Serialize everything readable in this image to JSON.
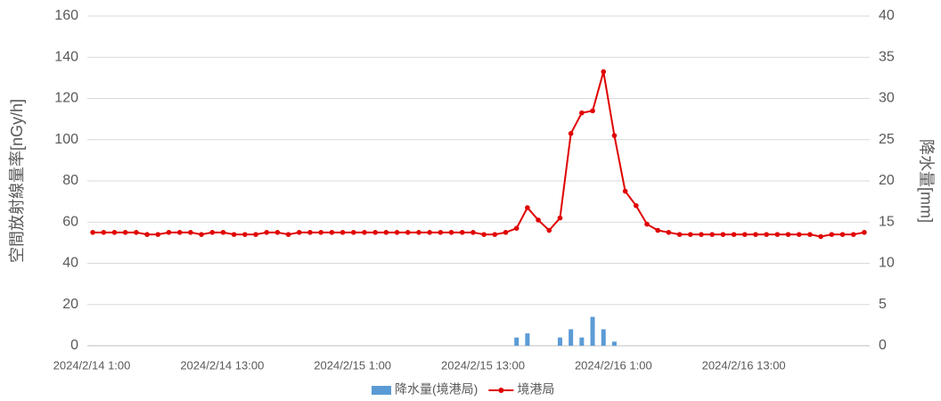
{
  "chart_data": {
    "type": "bar_line",
    "y_label": "空間放射線量率[nGy/h]",
    "y2_label": "降水量[mm]",
    "categories": [
      "2024/2/14 1:00",
      null,
      null,
      null,
      null,
      null,
      null,
      null,
      null,
      null,
      null,
      null,
      "2024/2/14 13:00",
      null,
      null,
      null,
      null,
      null,
      null,
      null,
      null,
      null,
      null,
      null,
      "2024/2/15 1:00",
      null,
      null,
      null,
      null,
      null,
      null,
      null,
      null,
      null,
      null,
      null,
      "2024/2/15 13:00",
      null,
      null,
      null,
      null,
      null,
      null,
      null,
      null,
      null,
      null,
      null,
      "2024/2/16 1:00",
      null,
      null,
      null,
      null,
      null,
      null,
      null,
      null,
      null,
      null,
      null,
      "2024/2/16 13:00",
      null,
      null,
      null,
      null,
      null,
      null,
      null,
      null,
      null,
      null,
      null
    ],
    "series": [
      {
        "name": "降水量(境港局)",
        "kind": "bar",
        "axis": "y2",
        "color": "#5b9bd5",
        "values": [
          0,
          0,
          0,
          0,
          0,
          0,
          0,
          0,
          0,
          0,
          0,
          0,
          0,
          0,
          0,
          0,
          0,
          0,
          0,
          0,
          0,
          0,
          0,
          0,
          0,
          0,
          0,
          0,
          0,
          0,
          0,
          0,
          0,
          0,
          0,
          0,
          0,
          0,
          0,
          1,
          1.5,
          0,
          0,
          1,
          2,
          1,
          3.5,
          2,
          0.5,
          0,
          0,
          0,
          0,
          0,
          0,
          0,
          0,
          0,
          0,
          0,
          0,
          0,
          0,
          0,
          0,
          0,
          0,
          0,
          0,
          0,
          0,
          0
        ]
      },
      {
        "name": "境港局",
        "kind": "line",
        "axis": "y",
        "color": "#e00000",
        "values": [
          55,
          55,
          55,
          55,
          55,
          54,
          54,
          55,
          55,
          55,
          54,
          55,
          55,
          54,
          54,
          54,
          55,
          55,
          54,
          55,
          55,
          55,
          55,
          55,
          55,
          55,
          55,
          55,
          55,
          55,
          55,
          55,
          55,
          55,
          55,
          55,
          54,
          54,
          55,
          57,
          67,
          61,
          56,
          62,
          103,
          113,
          114,
          133,
          102,
          75,
          68,
          59,
          56,
          55,
          54,
          54,
          54,
          54,
          54,
          54,
          54,
          54,
          54,
          54,
          54,
          54,
          54,
          53,
          54,
          54,
          54,
          55
        ]
      }
    ],
    "ylim": [
      0,
      160
    ],
    "yticks": [
      0,
      20,
      40,
      60,
      80,
      100,
      120,
      140,
      160
    ],
    "y2lim": [
      0,
      40
    ],
    "y2ticks": [
      0,
      5,
      10,
      15,
      20,
      25,
      30,
      35,
      40
    ],
    "grid": true
  }
}
